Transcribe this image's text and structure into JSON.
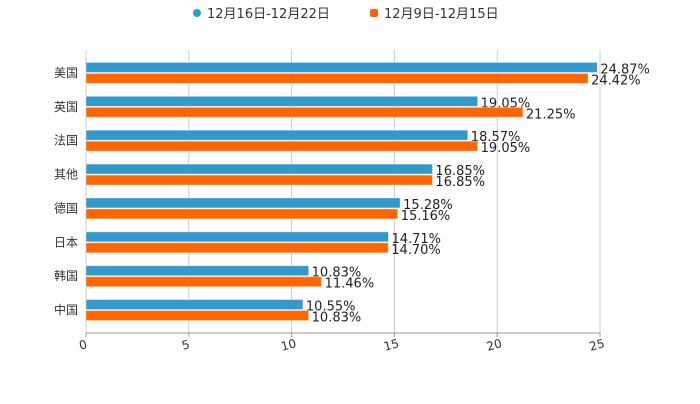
{
  "chart_data": {
    "type": "bar",
    "orientation": "horizontal",
    "title": "",
    "xlabel": "",
    "ylabel": "",
    "xlim": [
      0,
      25
    ],
    "xticks": [
      "0",
      "5",
      "10",
      "15",
      "20",
      "25"
    ],
    "grid": true,
    "legend_position": "top-center",
    "categories": [
      "美国",
      "英国",
      "法国",
      "其他",
      "德国",
      "日本",
      "韩国",
      "中国"
    ],
    "series": [
      {
        "name": "12月16日-12月22日",
        "color": "#3399cc",
        "values": [
          24.87,
          19.05,
          18.57,
          16.85,
          15.28,
          14.71,
          10.83,
          10.55
        ],
        "labels": [
          "24.87%",
          "19.05%",
          "18.57%",
          "16.85%",
          "15.28%",
          "14.71%",
          "10.83%",
          "10.55%"
        ]
      },
      {
        "name": "12月9日-12月15日",
        "color": "#ff6600",
        "values": [
          24.42,
          21.25,
          19.05,
          16.85,
          15.16,
          14.7,
          11.46,
          10.83
        ],
        "labels": [
          "24.42%",
          "21.25%",
          "19.05%",
          "16.85%",
          "15.16%",
          "14.70%",
          "11.46%",
          "10.83%"
        ]
      }
    ]
  }
}
